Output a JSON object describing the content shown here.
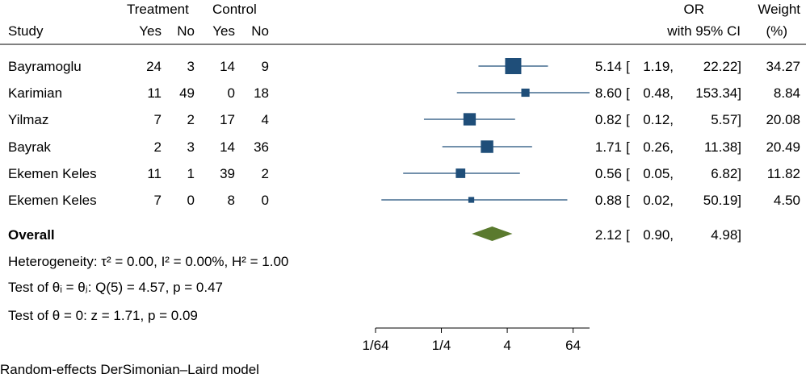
{
  "headers": {
    "study": "Study",
    "treatment": "Treatment",
    "control": "Control",
    "yes": "Yes",
    "no": "No",
    "or": "OR",
    "ci": "with 95% CI",
    "weight": "Weight",
    "weight_unit": "(%)"
  },
  "chart_data": {
    "type": "forest",
    "scale": "log2",
    "xlim": [
      -6,
      7
    ],
    "ticks": [
      {
        "label": "1/64",
        "value": 0.015625
      },
      {
        "label": "1/4",
        "value": 0.25
      },
      {
        "label": "4",
        "value": 4
      },
      {
        "label": "64",
        "value": 64
      }
    ],
    "studies": [
      {
        "name": "Bayramoglu",
        "t_yes": "24",
        "t_no": "3",
        "c_yes": "14",
        "c_no": "9",
        "or": 5.14,
        "lo": 1.19,
        "hi": 22.22,
        "or_text": "5.14",
        "lo_text": "1.19,",
        "hi_text": "22.22]",
        "weight": 34.27,
        "weight_text": "34.27"
      },
      {
        "name": "Karimian",
        "t_yes": "11",
        "t_no": "49",
        "c_yes": "0",
        "c_no": "18",
        "or": 8.6,
        "lo": 0.48,
        "hi": 153.34,
        "or_text": "8.60",
        "lo_text": "0.48,",
        "hi_text": "153.34]",
        "weight": 8.84,
        "weight_text": "8.84"
      },
      {
        "name": "Yilmaz",
        "t_yes": "7",
        "t_no": "2",
        "c_yes": "17",
        "c_no": "4",
        "or": 0.82,
        "lo": 0.12,
        "hi": 5.57,
        "or_text": "0.82",
        "lo_text": "0.12,",
        "hi_text": "5.57]",
        "weight": 20.08,
        "weight_text": "20.08"
      },
      {
        "name": "Bayrak",
        "t_yes": "2",
        "t_no": "3",
        "c_yes": "14",
        "c_no": "36",
        "or": 1.71,
        "lo": 0.26,
        "hi": 11.38,
        "or_text": "1.71",
        "lo_text": "0.26,",
        "hi_text": "11.38]",
        "weight": 20.49,
        "weight_text": "20.49"
      },
      {
        "name": "Ekemen Keles",
        "t_yes": "11",
        "t_no": "1",
        "c_yes": "39",
        "c_no": "2",
        "or": 0.56,
        "lo": 0.05,
        "hi": 6.82,
        "or_text": "0.56",
        "lo_text": "0.05,",
        "hi_text": "6.82]",
        "weight": 11.82,
        "weight_text": "11.82"
      },
      {
        "name": "Ekemen Keles",
        "t_yes": "7",
        "t_no": "0",
        "c_yes": "8",
        "c_no": "0",
        "or": 0.88,
        "lo": 0.02,
        "hi": 50.19,
        "or_text": "0.88",
        "lo_text": "0.02,",
        "hi_text": "50.19]",
        "weight": 4.5,
        "weight_text": "4.50"
      }
    ],
    "overall": {
      "label": "Overall",
      "or": 2.12,
      "lo": 0.9,
      "hi": 4.98,
      "or_text": "2.12",
      "lo_text": "0.90,",
      "hi_text": "4.98]"
    },
    "colors": {
      "marker": "#1f4e79",
      "diamond": "#5a7a2e",
      "axis": "#000000"
    }
  },
  "stats": {
    "heterogeneity": "Heterogeneity: τ² = 0.00, I² = 0.00%, H² = 1.00",
    "test_theta_i": "Test of θᵢ = θⱼ: Q(5) = 4.57, p = 0.47",
    "test_theta": "Test of θ = 0: z = 1.71, p = 0.09"
  },
  "footnote": "Random-effects DerSimonian–Laird model"
}
